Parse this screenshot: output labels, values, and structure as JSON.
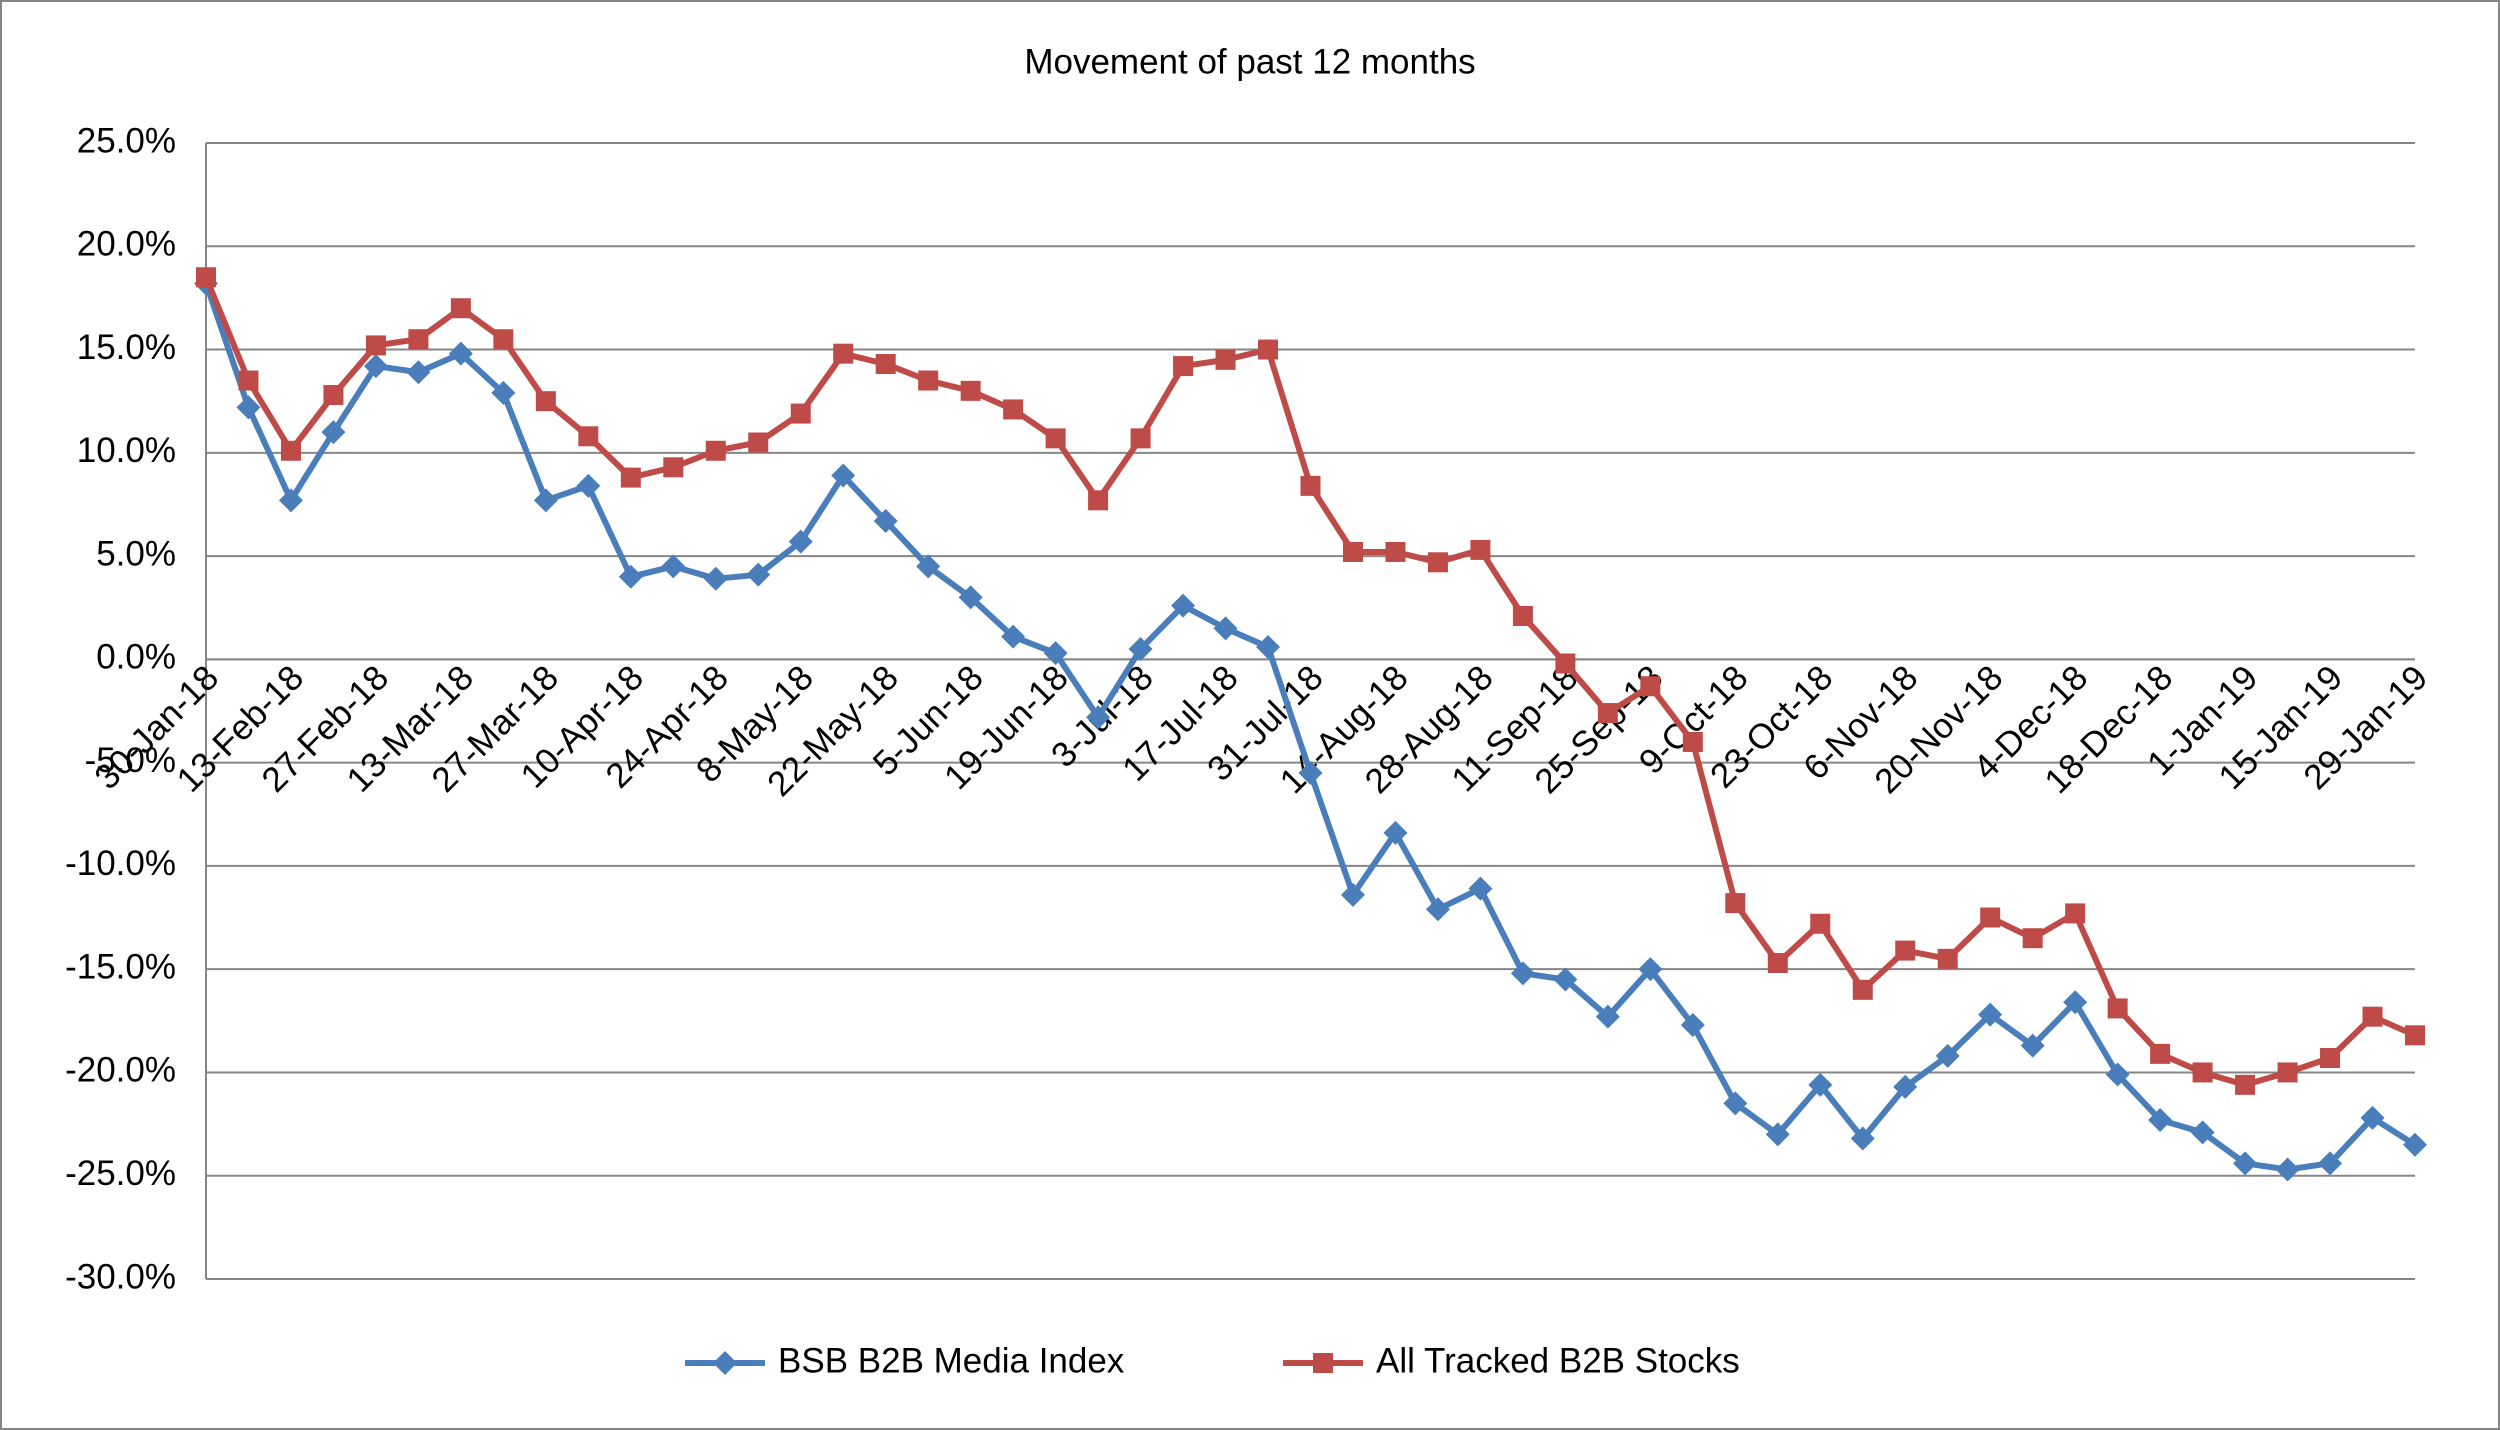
{
  "chart_data": {
    "type": "line",
    "title": "Movement of past 12 months",
    "categories": [
      "30-Jan-18",
      null,
      "13-Feb-18",
      null,
      "27-Feb-18",
      null,
      "13-Mar-18",
      null,
      "27-Mar-18",
      null,
      "10-Apr-18",
      null,
      "24-Apr-18",
      null,
      "8-May-18",
      null,
      "22-May-18",
      null,
      "5-Jun-18",
      null,
      "19-Jun-18",
      null,
      "3-Jul-18",
      null,
      "17-Jul-18",
      null,
      "31-Jul-18",
      null,
      "14-Aug-18",
      null,
      "28-Aug-18",
      null,
      "11-Sep-18",
      null,
      "25-Sep-18",
      null,
      "9-Oct-18",
      null,
      "23-Oct-18",
      null,
      "6-Nov-18",
      null,
      "20-Nov-18",
      null,
      "4-Dec-18",
      null,
      "18-Dec-18",
      null,
      "1-Jan-19",
      null,
      "15-Jan-19",
      null,
      "29-Jan-19"
    ],
    "series": [
      {
        "name": "BSB B2B Media Index",
        "color": "#4a7ebb",
        "marker": "diamond",
        "values": [
          18.2,
          12.2,
          7.7,
          11.0,
          14.2,
          13.9,
          14.8,
          12.9,
          7.7,
          8.4,
          4.0,
          4.5,
          3.9,
          4.1,
          5.7,
          8.9,
          6.7,
          4.5,
          3.0,
          1.1,
          0.3,
          -2.8,
          0.5,
          2.6,
          1.5,
          0.6,
          -5.5,
          -11.4,
          -8.4,
          -12.1,
          -11.1,
          -15.2,
          -15.5,
          -17.3,
          -15.0,
          -17.7,
          -21.5,
          -23.0,
          -20.6,
          -23.2,
          -20.7,
          -19.2,
          -17.2,
          -18.7,
          -16.6,
          -20.1,
          -22.3,
          -22.9,
          -24.4,
          -24.7,
          -24.4,
          -22.2,
          -23.5
        ]
      },
      {
        "name": "All Tracked B2B Stocks",
        "color": "#be4b48",
        "marker": "square",
        "values": [
          18.5,
          13.5,
          10.1,
          12.8,
          15.2,
          15.5,
          17.0,
          15.5,
          12.5,
          10.8,
          8.8,
          9.3,
          10.1,
          10.5,
          11.9,
          14.8,
          14.3,
          13.5,
          13.0,
          12.1,
          10.7,
          7.7,
          10.7,
          14.2,
          14.5,
          15.0,
          8.4,
          5.2,
          5.2,
          4.7,
          5.3,
          2.1,
          -0.2,
          -2.6,
          -1.3,
          -4.0,
          -11.8,
          -14.7,
          -12.8,
          -16.0,
          -14.1,
          -14.5,
          -12.5,
          -13.5,
          -12.3,
          -16.9,
          -19.1,
          -20.0,
          -20.6,
          -20.0,
          -19.3,
          -17.3,
          -18.2
        ]
      }
    ],
    "ylim": [
      -30,
      25
    ],
    "yticks": [
      {
        "value": -30,
        "label": "-30.0%"
      },
      {
        "value": -25,
        "label": "-25.0%"
      },
      {
        "value": -20,
        "label": "-20.0%"
      },
      {
        "value": -15,
        "label": "-15.0%"
      },
      {
        "value": -10,
        "label": "-10.0%"
      },
      {
        "value": -5,
        "label": "-5.0%"
      },
      {
        "value": 0,
        "label": "0.0%"
      },
      {
        "value": 5,
        "label": "5.0%"
      },
      {
        "value": 10,
        "label": "10.0%"
      },
      {
        "value": 15,
        "label": "15.0%"
      },
      {
        "value": 20,
        "label": "20.0%"
      },
      {
        "value": 25,
        "label": "25.0%"
      }
    ],
    "grid": true,
    "legend": "bottom"
  }
}
